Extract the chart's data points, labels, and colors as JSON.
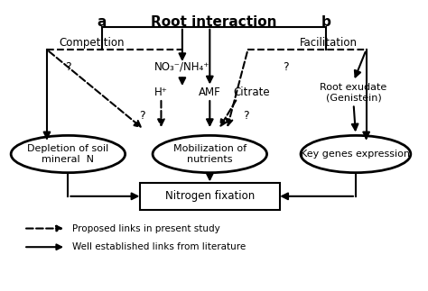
{
  "title": "Root interaction",
  "label_a": "a",
  "label_b": "b",
  "label_competition": "Competition",
  "label_facilitation": "Facilitation",
  "label_no3": "NO₃⁻/NH₄⁺",
  "label_h": "H⁺",
  "label_amf": "AMF",
  "label_citrate": "Citrate",
  "label_root_exudate": "Root exudate\n(Genistein)",
  "label_depletion": "Depletion of soil\nmineral  N",
  "label_mobilization": "Mobilization of\nnutrients",
  "label_key_genes": "Key genes expression",
  "label_nitrogen": "Nitrogen fixation",
  "label_legend1": "Proposed links in present study",
  "label_legend2": "Well established links from literature",
  "bg_color": "#ffffff",
  "text_color": "#000000"
}
